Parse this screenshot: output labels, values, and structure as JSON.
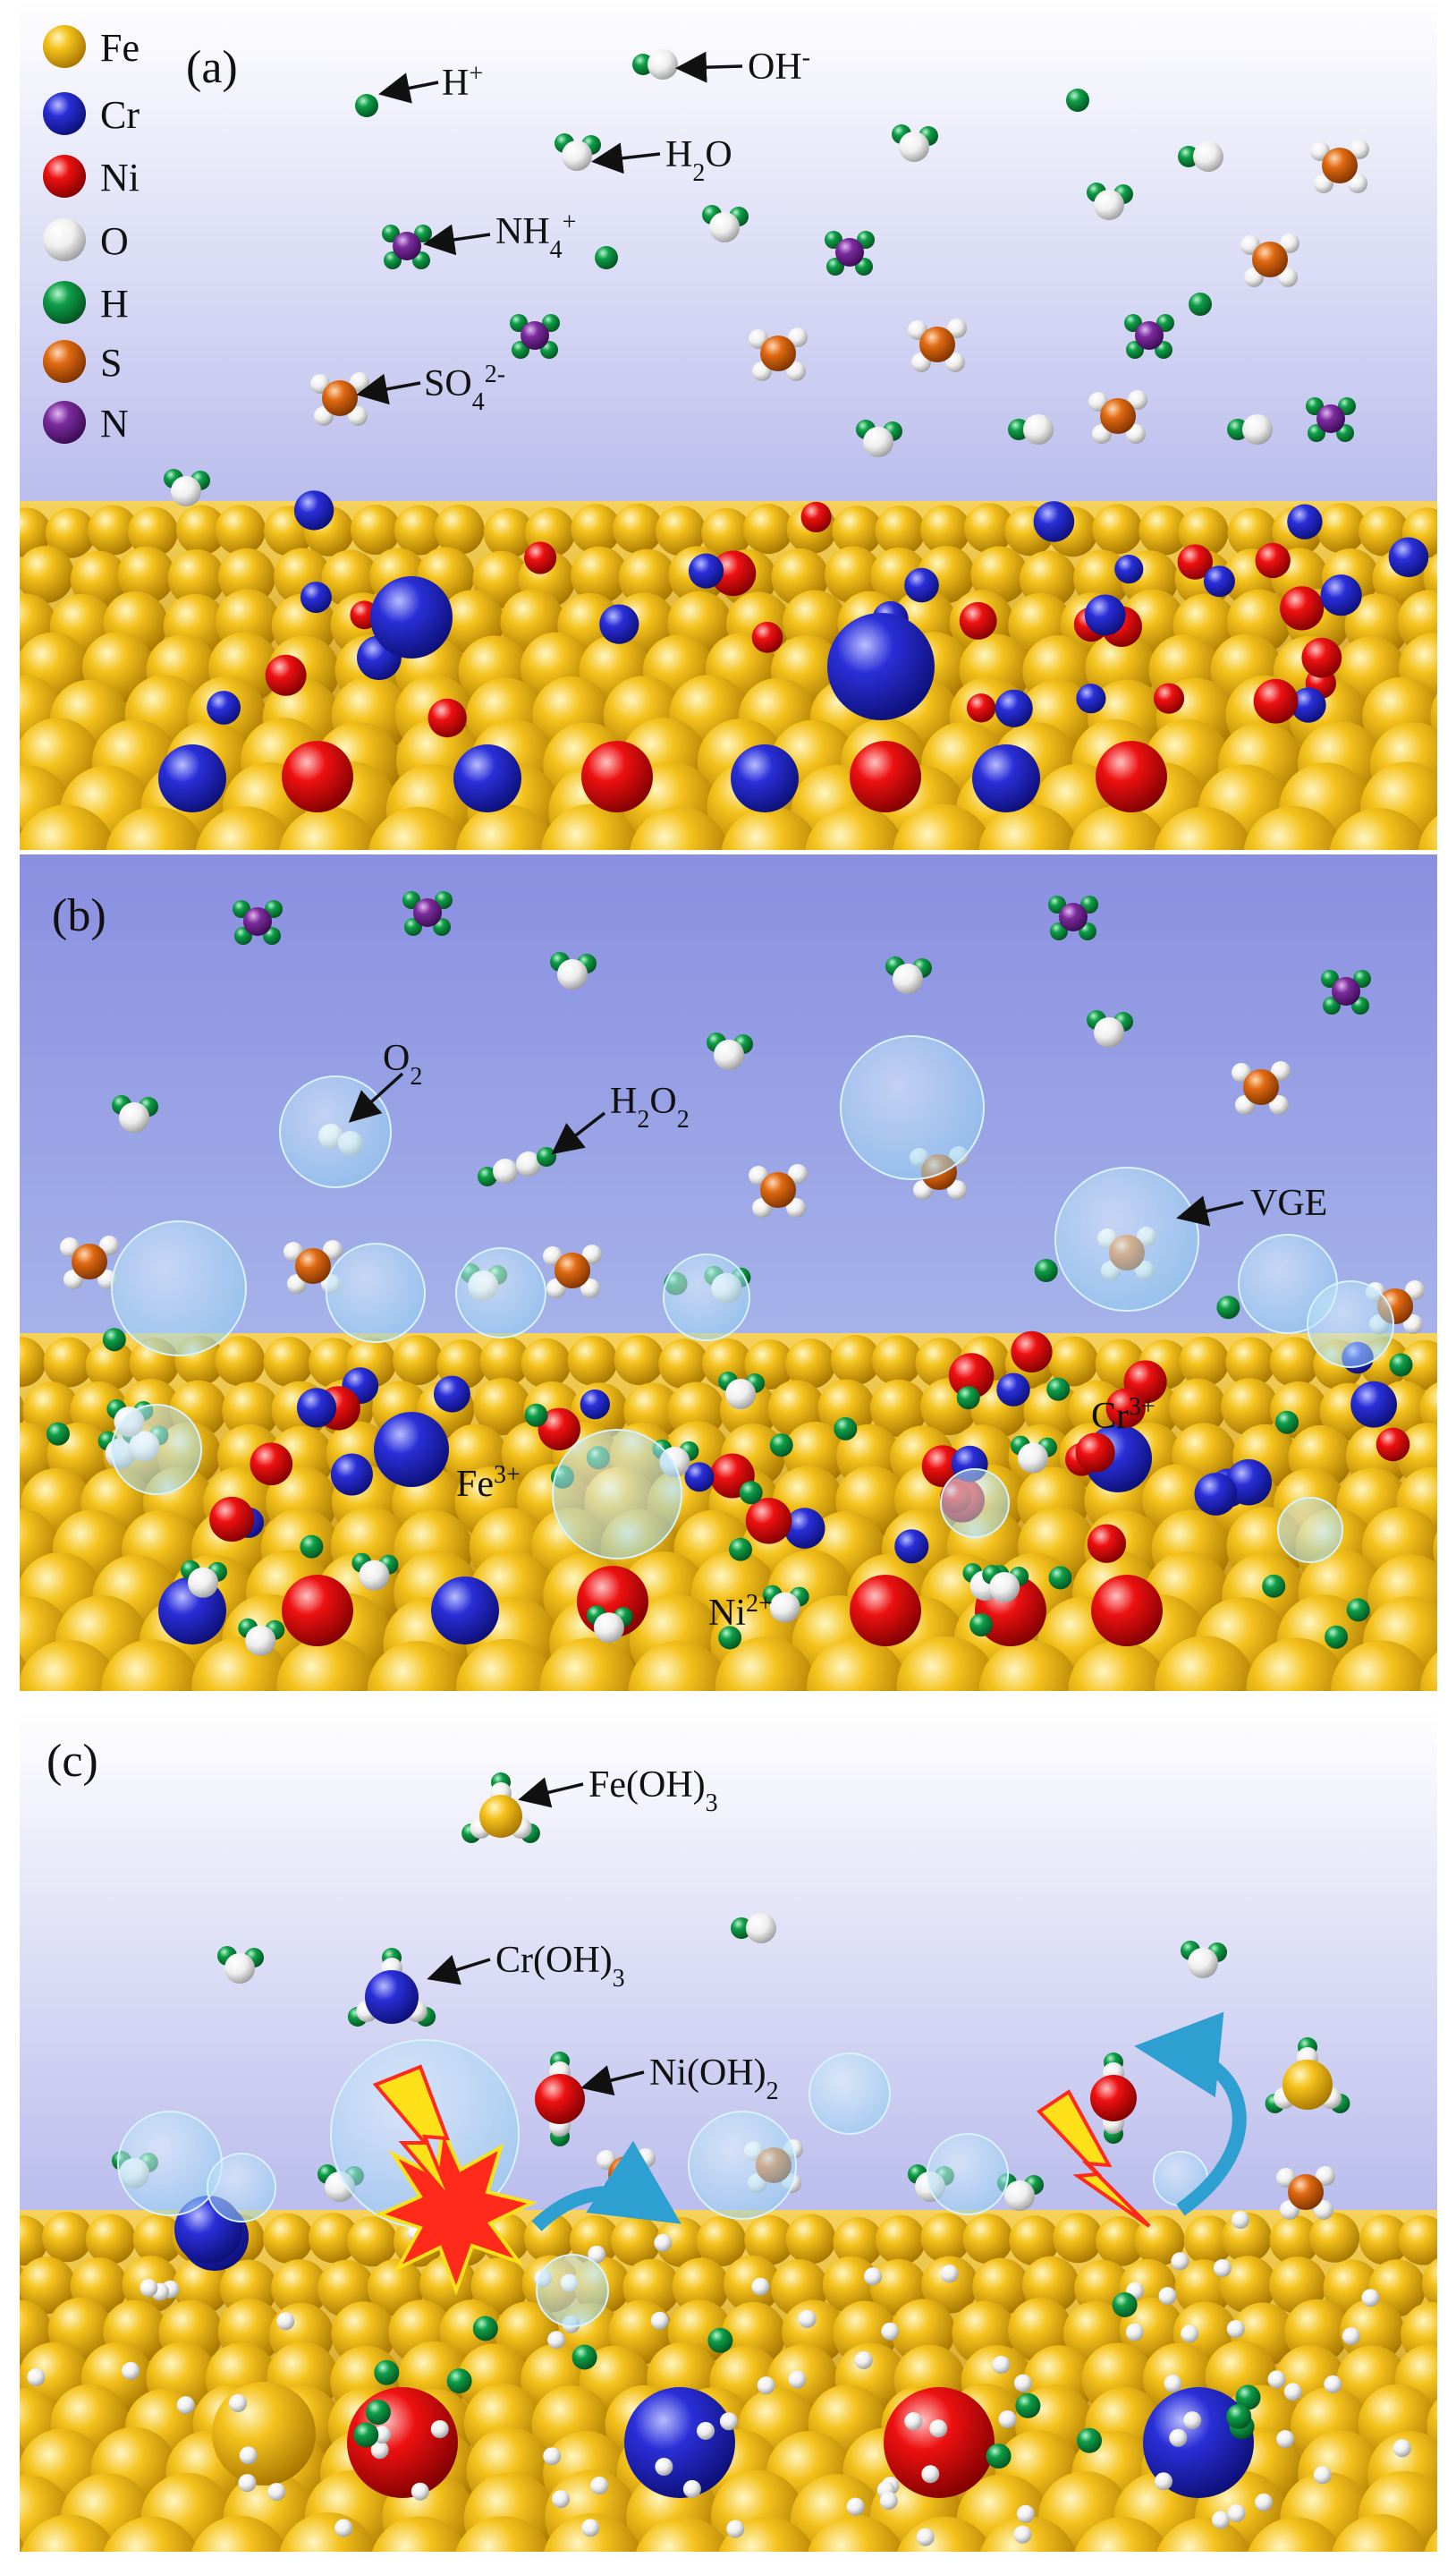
{
  "colors": {
    "Fe": "#f1b90f",
    "Cr": "#2a2fd8",
    "Ni": "#ee1111",
    "O": "#f2f2f2",
    "H": "#0f9e48",
    "S": "#e06a12",
    "N": "#7b2c9c",
    "sky_top": "#ffffff",
    "sky_bottom": "#8b8fe0",
    "bubble": "#bfe6f7",
    "spark": "#ff2a1a",
    "bolt": "#ffe11a",
    "curved_arrow": "#2d9fd0"
  },
  "legend": [
    {
      "symbol": "Fe",
      "label": "Fe"
    },
    {
      "symbol": "Cr",
      "label": "Cr"
    },
    {
      "symbol": "Ni",
      "label": "Ni"
    },
    {
      "symbol": "O",
      "label": "O"
    },
    {
      "symbol": "H",
      "label": "H"
    },
    {
      "symbol": "S",
      "label": "S"
    },
    {
      "symbol": "N",
      "label": "N"
    }
  ],
  "panels": {
    "a": {
      "label": "(a)",
      "species": {
        "h_plus": {
          "main": "H",
          "sup": "+"
        },
        "oh_minus": {
          "main": "OH",
          "sup": "-"
        },
        "h2o": {
          "main": "H",
          "sub": "2",
          "tail": "O"
        },
        "nh4": {
          "main": "NH",
          "sub": "4",
          "sup": "+"
        },
        "so4": {
          "main": "SO",
          "sub": "4",
          "sup": "2-"
        }
      }
    },
    "b": {
      "label": "(b)",
      "species": {
        "o2": {
          "main": "O",
          "sub": "2"
        },
        "h2o2": {
          "main": "H",
          "sub": "2",
          "mid": "O",
          "sub2": "2"
        },
        "vge": "VGE",
        "fe3": {
          "main": "Fe",
          "sup": "3+"
        },
        "cr3": {
          "main": "Cr",
          "sup": "3+"
        },
        "ni2": {
          "main": "Ni",
          "sup": "2+"
        }
      }
    },
    "c": {
      "label": "(c)",
      "species": {
        "feoh3": {
          "main": "Fe(OH)",
          "sub": "3"
        },
        "croh3": {
          "main": "Cr(OH)",
          "sub": "3"
        },
        "nioh2": {
          "main": "Ni(OH)",
          "sub": "2"
        }
      }
    }
  }
}
